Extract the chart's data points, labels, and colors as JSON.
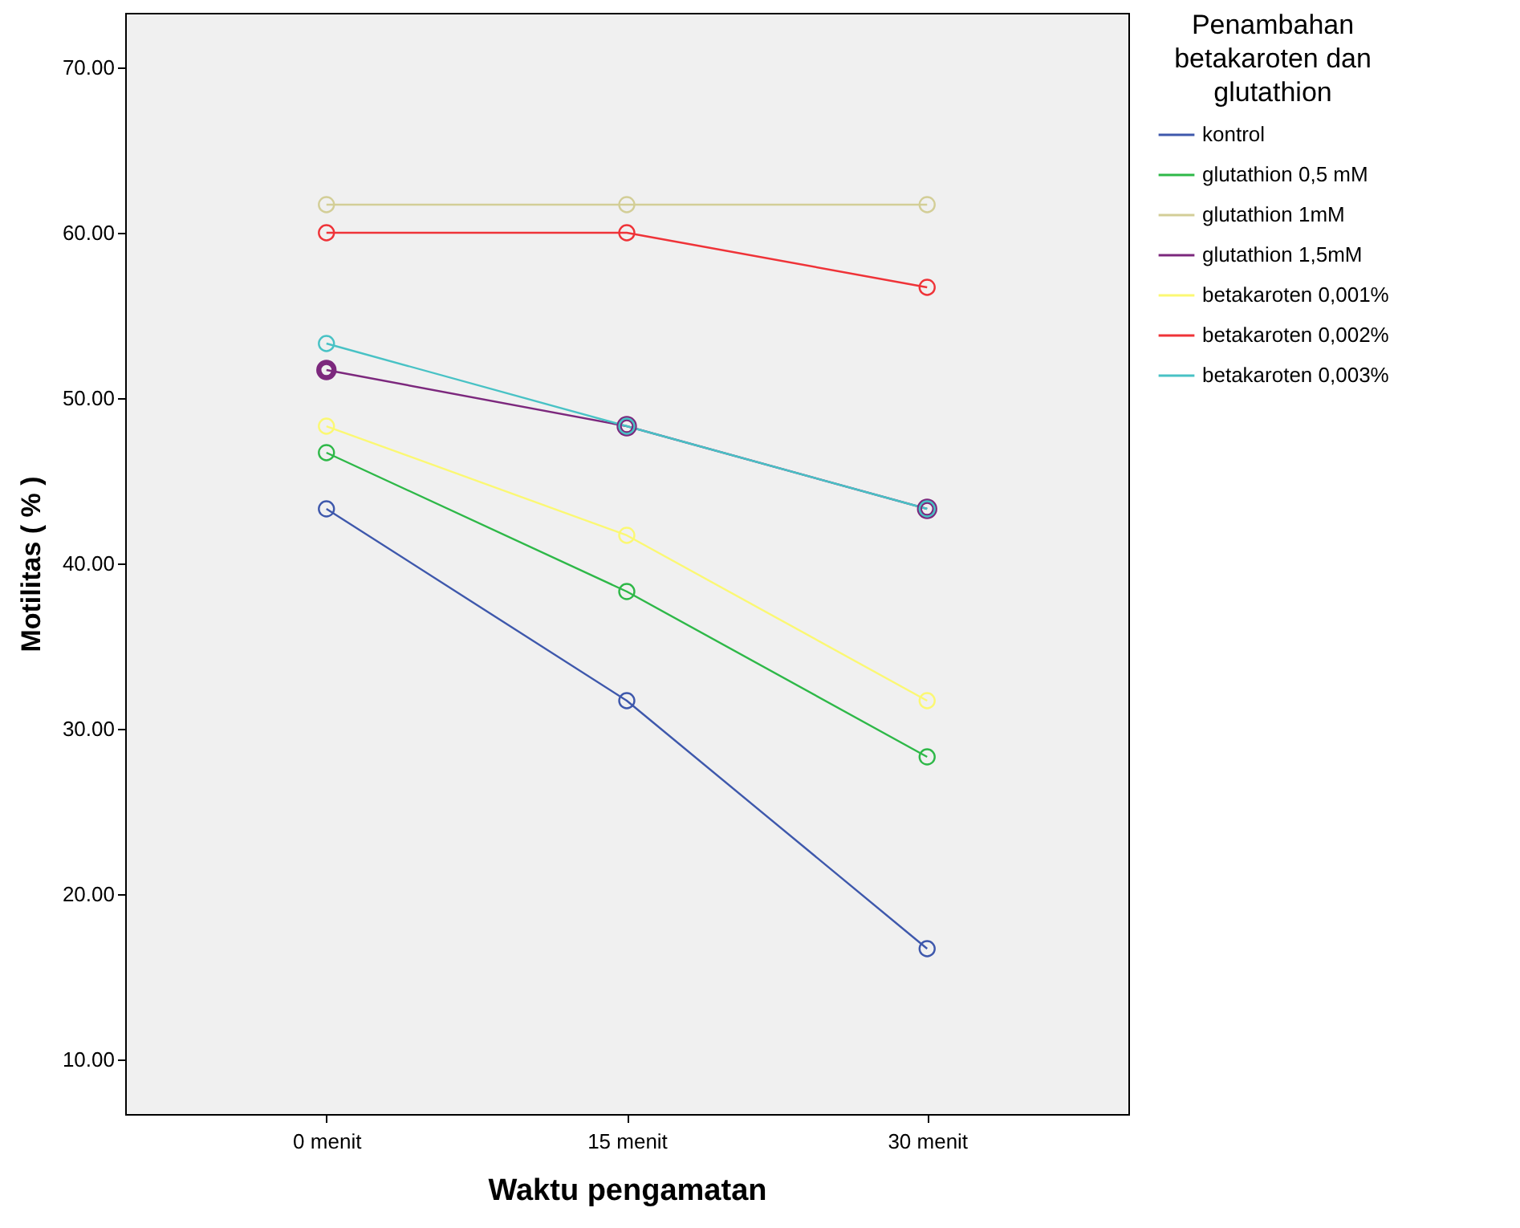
{
  "chart_data": {
    "type": "line",
    "xlabel": "Waktu pengamatan",
    "ylabel": "Motilitas ( % )",
    "legend_title": "Penambahan betakaroten dan glutathion",
    "legend": "right",
    "marker": "circle",
    "line_style": "solid",
    "grid": false,
    "categories": [
      "0 menit",
      "15 menit",
      "30 menit"
    ],
    "ylim": [
      6.7,
      73.3
    ],
    "yticks": [
      {
        "value": 10,
        "label": "10.00"
      },
      {
        "value": 20,
        "label": "20.00"
      },
      {
        "value": 30,
        "label": "30.00"
      },
      {
        "value": 40,
        "label": "40.00"
      },
      {
        "value": 50,
        "label": "50.00"
      },
      {
        "value": 60,
        "label": "60.00"
      },
      {
        "value": 70,
        "label": "70.00"
      }
    ],
    "series": [
      {
        "name": "kontrol",
        "color": "#3e58ac",
        "values": [
          43.3,
          31.7,
          16.7
        ]
      },
      {
        "name": "glutathion 0,5 mM",
        "color": "#2eb848",
        "values": [
          46.7,
          38.3,
          28.3
        ]
      },
      {
        "name": "glutathion 1mM",
        "color": "#d3ce97",
        "values": [
          61.7,
          61.7,
          61.7
        ]
      },
      {
        "name": "glutathion 1,5mM",
        "color": "#7c287d",
        "values": [
          51.7,
          48.3,
          43.3
        ]
      },
      {
        "name": "betakaroten 0,001%",
        "color": "#fbf873",
        "values": [
          48.3,
          41.7,
          31.7
        ]
      },
      {
        "name": "betakaroten 0,002%",
        "color": "#ef3338",
        "values": [
          60.0,
          60.0,
          56.7
        ]
      },
      {
        "name": "betakaroten 0,003%",
        "color": "#48c2c5",
        "values": [
          53.3,
          48.3,
          43.3
        ]
      }
    ]
  }
}
